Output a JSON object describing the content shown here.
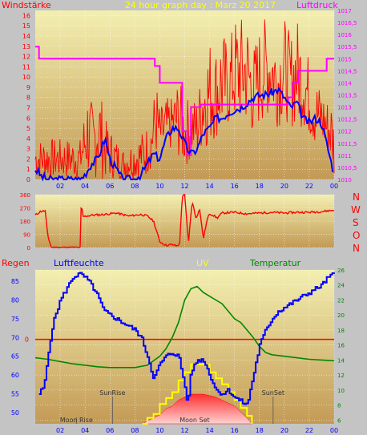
{
  "header": {
    "left_label": "Windstärke",
    "center_label": "24 hour graph day : Marz 20 2017",
    "right_label": "Luftdruck"
  },
  "colors": {
    "background": "#c4c4c4",
    "plot_top": "#f2eea8",
    "plot_bottom": "#c8a05c",
    "red": "#ff0000",
    "blue": "#0000ff",
    "magenta": "#ff00ff",
    "green": "#008800",
    "yellow": "#ffff00",
    "grid": "#ffffff"
  },
  "compass_labels": [
    "N",
    "W",
    "S",
    "O",
    "N"
  ],
  "bottom_header": {
    "rain": "Regen",
    "humidity": "Luftfeuchte",
    "uv": "UV",
    "temperature": "Temperatur"
  },
  "annotations": {
    "sunrise": "SunRise",
    "sunset": "SunSet",
    "moonrise": "Moon Rise",
    "moonset": "Moon Set"
  },
  "chart_data": [
    {
      "type": "line",
      "title": "24 hour graph day : Marz 20 2017",
      "x_ticks": [
        "02",
        "04",
        "06",
        "08",
        "10",
        "12",
        "14",
        "16",
        "18",
        "20",
        "22",
        "00"
      ],
      "y_left_label": "Windstärke",
      "y_left_ticks": [
        0,
        1,
        2,
        3,
        4,
        5,
        6,
        7,
        8,
        9,
        10,
        11,
        12,
        13,
        14,
        15,
        16
      ],
      "y_left_range": [
        0,
        16.5
      ],
      "y_right_label": "Luftdruck",
      "y_right_ticks": [
        "1010",
        "1010,5",
        "1011",
        "1011,5",
        "1012",
        "1012,5",
        "1013",
        "1013,5",
        "1014",
        "1014,5",
        "1015",
        "1015,5",
        "1016",
        "1016,5",
        "1017"
      ],
      "y_right_range": [
        1010,
        1017
      ],
      "series": [
        {
          "color": "red",
          "hours": [
            0.5,
            3.6,
            4.2,
            4.7,
            5.0,
            5.2,
            5.6,
            6.0,
            7.0,
            8.0,
            8.8,
            9.3,
            9.7,
            10.0,
            10.5,
            11.0,
            11.5,
            12.0,
            12.5,
            13.0,
            13.5,
            14.0,
            14.5,
            15.0,
            15.5,
            16.0,
            16.5,
            17.0,
            17.5,
            18.0,
            18.5,
            19.0,
            19.5,
            20.0,
            20.5,
            21.0,
            21.5,
            22.0,
            22.5,
            23.0,
            23.5,
            23.8,
            24.0
          ],
          "high": [
            4,
            4,
            9,
            7,
            10,
            9,
            6,
            5,
            3,
            4,
            5,
            6,
            10,
            7,
            8,
            8,
            10,
            8,
            8,
            8,
            12,
            14,
            13,
            15,
            13,
            16,
            16,
            16,
            13,
            15,
            16,
            15,
            14,
            16,
            14,
            16,
            14,
            12,
            10,
            9,
            8,
            8,
            6
          ],
          "low": [
            0,
            0,
            0,
            0,
            0,
            0,
            0,
            0,
            0,
            0,
            0,
            1,
            2,
            2,
            2,
            3,
            2,
            1,
            2,
            2,
            3,
            3,
            4,
            4,
            5,
            5,
            5,
            5,
            4,
            5,
            6,
            6,
            5,
            6,
            5,
            5,
            5,
            4,
            3,
            3,
            2,
            1,
            0
          ]
        },
        {
          "color": "blue",
          "hours": [
            0,
            0.5,
            1,
            2,
            3,
            3.6,
            4,
            4.5,
            5,
            5.3,
            5.6,
            6,
            6.5,
            7,
            8,
            8.5,
            9,
            9.5,
            10,
            10.5,
            11,
            11.5,
            12,
            12.3,
            12.6,
            13,
            13.5,
            14,
            14.5,
            15,
            15.5,
            16,
            16.5,
            17,
            17.5,
            18,
            18.5,
            19,
            19.5,
            20,
            20.5,
            21,
            21.5,
            22,
            22.5,
            23,
            23.5,
            24
          ],
          "values": [
            1,
            0.3,
            0,
            0,
            0,
            0,
            0.5,
            1.5,
            2,
            3,
            4,
            2,
            1,
            0,
            0,
            0.5,
            1.5,
            2.5,
            2,
            4,
            5,
            5,
            3.5,
            2.8,
            2.5,
            3,
            4.5,
            5,
            6,
            6,
            6.5,
            6.8,
            7,
            7.5,
            8,
            8.2,
            8.3,
            8.5,
            8.8,
            8,
            7,
            7.5,
            6,
            5.5,
            6,
            5.5,
            3,
            0.5
          ]
        },
        {
          "color": "magenta",
          "hours": [
            0,
            0.3,
            0.3,
            9.6,
            9.6,
            10.0,
            10.0,
            11.8,
            11.8,
            12.2,
            12.2,
            12.5,
            12.5,
            13.3,
            13.3,
            20.3,
            20.3,
            20.7,
            20.7,
            21.1,
            21.1,
            23.4,
            23.4,
            24
          ],
          "values": [
            1015.5,
            1015.5,
            1015.0,
            1015.0,
            1014.7,
            1014.7,
            1014.0,
            1014.0,
            1012.0,
            1012.0,
            1011.0,
            1011.0,
            1013.0,
            1013.0,
            1013.1,
            1013.1,
            1013.4,
            1013.4,
            1014.0,
            1014.0,
            1014.5,
            1014.5,
            1015.0,
            1015.0
          ]
        }
      ]
    },
    {
      "type": "line",
      "title": "",
      "y_ticks": [
        0,
        90,
        180,
        270,
        360
      ],
      "y_range": [
        0,
        360
      ],
      "series": [
        {
          "color": "red",
          "hours": [
            0,
            0.4,
            0.8,
            1.0,
            1.3,
            3.6,
            3.7,
            3.8,
            4.5,
            5.5,
            6.5,
            7.5,
            8.5,
            9.0,
            9.5,
            10.0,
            10.5,
            11.0,
            11.4,
            11.6,
            11.8,
            12.0,
            12.3,
            12.6,
            12.9,
            13.2,
            13.5,
            13.8,
            14.0,
            14.3,
            14.6,
            15.0,
            16.0,
            17.0,
            18.0,
            19.0,
            20.0,
            21.0,
            22.0,
            23.0,
            24.0
          ],
          "values": [
            220,
            245,
            250,
            80,
            0,
            0,
            330,
            210,
            220,
            225,
            235,
            215,
            225,
            215,
            180,
            40,
            15,
            20,
            10,
            30,
            350,
            360,
            30,
            320,
            200,
            260,
            60,
            190,
            230,
            220,
            200,
            235,
            240,
            230,
            235,
            240,
            235,
            240,
            240,
            245,
            255
          ]
        }
      ]
    },
    {
      "type": "line",
      "title": "",
      "y_left_label": "Luftfeuchte",
      "y_left_ticks": [
        50,
        55,
        60,
        65,
        70,
        75,
        80,
        85
      ],
      "y_left_range": [
        47,
        88
      ],
      "y_right_label": "Temperatur",
      "y_right_ticks": [
        6,
        8,
        10,
        12,
        14,
        16,
        18,
        20,
        22,
        24,
        26
      ],
      "y_right_range": [
        5.5,
        26
      ],
      "rain_axis_label": "0",
      "series": [
        {
          "color": "blue",
          "hours": [
            0.3,
            0.7,
            1.0,
            1.3,
            1.6,
            2.0,
            2.5,
            3.0,
            3.5,
            4.0,
            4.5,
            5.0,
            5.5,
            6.0,
            6.5,
            7.0,
            7.5,
            8.0,
            8.5,
            9.0,
            9.5,
            10.0,
            10.5,
            11.0,
            11.5,
            12.0,
            12.2,
            12.5,
            13.0,
            13.5,
            14.0,
            14.5,
            15.0,
            15.5,
            16.0,
            16.5,
            17.0,
            17.5,
            18.0,
            18.5,
            19.0,
            19.5,
            20.0,
            20.5,
            21.0,
            21.5,
            22.0,
            22.5,
            23.0,
            23.5,
            24.0
          ],
          "values": [
            55,
            57,
            65,
            72,
            76,
            80,
            83,
            86,
            87,
            86,
            84,
            81,
            77,
            76,
            75,
            74,
            73,
            72,
            70,
            65,
            59,
            63,
            65,
            66,
            65,
            57,
            52,
            61,
            64,
            64,
            60,
            56,
            55,
            56,
            54,
            53,
            52,
            60,
            68,
            72,
            75,
            77,
            78,
            79,
            80,
            81,
            82,
            83,
            84,
            86,
            87
          ]
        },
        {
          "color": "green",
          "hours": [
            0,
            1,
            2,
            3,
            4,
            5,
            6,
            7,
            8,
            9,
            10,
            10.5,
            11,
            11.5,
            12,
            12.5,
            13,
            13.5,
            14,
            14.5,
            15,
            15.5,
            16,
            16.5,
            17,
            17.5,
            18,
            18.5,
            19,
            20,
            21,
            22,
            23,
            24
          ],
          "values": [
            14.3,
            14.1,
            13.8,
            13.5,
            13.3,
            13.1,
            13.0,
            13.0,
            13.0,
            13.3,
            14.5,
            15.5,
            17,
            19,
            22,
            23.5,
            23.8,
            23,
            22.5,
            22,
            21.5,
            20.5,
            19.5,
            19,
            18,
            17,
            15.8,
            15,
            14.7,
            14.5,
            14.3,
            14.1,
            14.0,
            13.9
          ]
        },
        {
          "color": "yellow",
          "hours": [
            8.6,
            9.0,
            9.5,
            10.0,
            10.5,
            11.0,
            11.5,
            12.0,
            12.5,
            13.0,
            13.5,
            14.0,
            14.5,
            15.0,
            15.5,
            16.0,
            16.5,
            17.0,
            17.4
          ],
          "values": [
            0,
            0.3,
            0.5,
            1.0,
            1.3,
            1.6,
            2.2,
            2.6,
            3.0,
            3.0,
            3.0,
            2.6,
            2.3,
            2.0,
            1.6,
            1.2,
            0.8,
            0.4,
            0
          ]
        },
        {
          "color": "red",
          "type": "area",
          "hours": [
            8.6,
            9.5,
            10.0,
            10.5,
            11.0,
            11.5,
            12.0,
            12.5,
            13.0,
            13.5,
            14.0,
            14.5,
            15.0,
            15.5,
            16.0,
            16.5,
            17.0,
            17.4
          ],
          "values": [
            0,
            0.2,
            0.3,
            0.5,
            0.6,
            0.8,
            0.9,
            1.0,
            1.0,
            1.0,
            0.95,
            0.9,
            0.8,
            0.7,
            0.6,
            0.4,
            0.2,
            0
          ]
        }
      ],
      "uv_range": [
        0,
        3.5
      ],
      "markers": [
        {
          "label": "SunRise",
          "hour": 6.2
        },
        {
          "label": "SunSet",
          "hour": 19.1
        },
        {
          "label": "Moon Rise",
          "hour": 3.3
        },
        {
          "label": "Moon Set",
          "hour": 12.8
        }
      ]
    }
  ]
}
